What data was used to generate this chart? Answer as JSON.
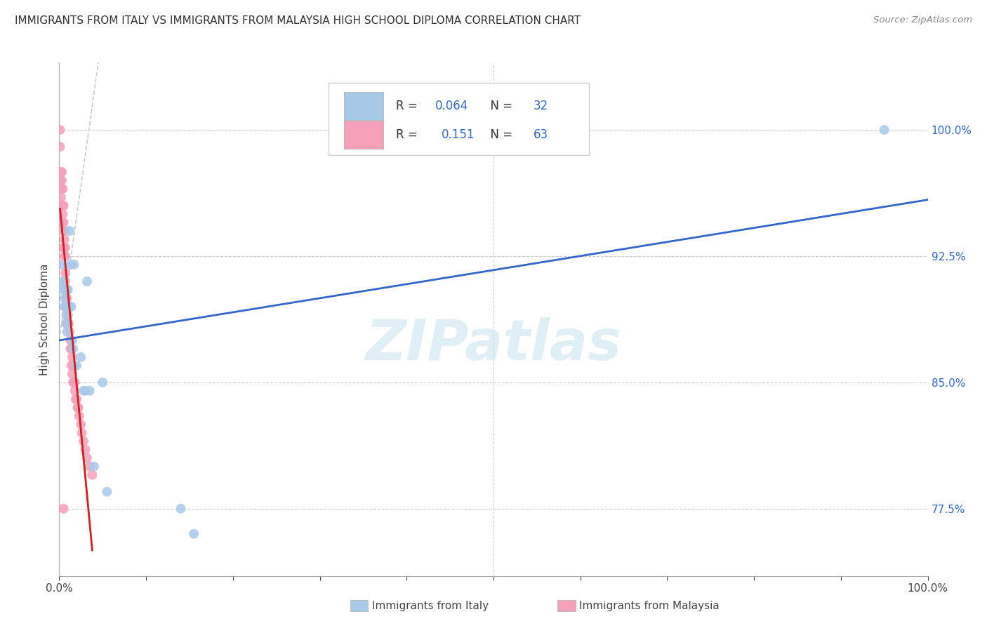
{
  "title": "IMMIGRANTS FROM ITALY VS IMMIGRANTS FROM MALAYSIA HIGH SCHOOL DIPLOMA CORRELATION CHART",
  "source": "Source: ZipAtlas.com",
  "ylabel": "High School Diploma",
  "watermark": "ZIPatlas",
  "legend_italy": "Immigrants from Italy",
  "legend_malaysia": "Immigrants from Malaysia",
  "R_italy": 0.064,
  "N_italy": 32,
  "R_malaysia": 0.151,
  "N_malaysia": 63,
  "xlim": [
    0.0,
    1.0
  ],
  "ylim": [
    0.735,
    1.04
  ],
  "yticks": [
    0.775,
    0.85,
    0.925,
    1.0
  ],
  "ytick_labels": [
    "77.5%",
    "85.0%",
    "92.5%",
    "100.0%"
  ],
  "color_italy": "#a8c8e8",
  "color_malaysia": "#f4a0b8",
  "trendline_italy_color": "#3366cc",
  "trendline_malaysia_color": "#cc2222",
  "refline_color": "#cccccc",
  "background_color": "#ffffff",
  "grid_color": "#cccccc",
  "italy_x": [
    0.004,
    0.004,
    0.005,
    0.006,
    0.006,
    0.007,
    0.007,
    0.008,
    0.008,
    0.009,
    0.009,
    0.01,
    0.01,
    0.011,
    0.012,
    0.013,
    0.014,
    0.015,
    0.016,
    0.017,
    0.02,
    0.025,
    0.028,
    0.03,
    0.032,
    0.035,
    0.04,
    0.05,
    0.055,
    0.14,
    0.155,
    0.95
  ],
  "italy_y": [
    0.92,
    0.91,
    0.905,
    0.9,
    0.895,
    0.905,
    0.895,
    0.89,
    0.885,
    0.905,
    0.88,
    0.905,
    0.895,
    0.895,
    0.94,
    0.92,
    0.895,
    0.875,
    0.87,
    0.92,
    0.86,
    0.865,
    0.845,
    0.845,
    0.91,
    0.845,
    0.8,
    0.85,
    0.785,
    0.775,
    0.76,
    1.0
  ],
  "malaysia_x": [
    0.001,
    0.001,
    0.001,
    0.002,
    0.002,
    0.002,
    0.003,
    0.003,
    0.003,
    0.003,
    0.004,
    0.004,
    0.004,
    0.004,
    0.005,
    0.005,
    0.005,
    0.005,
    0.006,
    0.006,
    0.006,
    0.006,
    0.007,
    0.007,
    0.007,
    0.007,
    0.008,
    0.008,
    0.008,
    0.009,
    0.009,
    0.009,
    0.009,
    0.01,
    0.01,
    0.01,
    0.011,
    0.011,
    0.012,
    0.013,
    0.013,
    0.014,
    0.014,
    0.015,
    0.015,
    0.016,
    0.016,
    0.017,
    0.018,
    0.018,
    0.019,
    0.02,
    0.021,
    0.022,
    0.023,
    0.025,
    0.026,
    0.028,
    0.03,
    0.032,
    0.035,
    0.038,
    0.005
  ],
  "malaysia_y": [
    1.0,
    0.99,
    0.97,
    0.975,
    0.965,
    0.96,
    0.975,
    0.97,
    0.965,
    0.955,
    0.965,
    0.955,
    0.95,
    0.945,
    0.955,
    0.945,
    0.94,
    0.93,
    0.94,
    0.935,
    0.93,
    0.925,
    0.93,
    0.925,
    0.915,
    0.91,
    0.905,
    0.9,
    0.895,
    0.905,
    0.9,
    0.895,
    0.885,
    0.895,
    0.89,
    0.885,
    0.895,
    0.885,
    0.88,
    0.875,
    0.87,
    0.87,
    0.86,
    0.865,
    0.855,
    0.86,
    0.85,
    0.85,
    0.85,
    0.845,
    0.84,
    0.84,
    0.835,
    0.835,
    0.83,
    0.825,
    0.82,
    0.815,
    0.81,
    0.805,
    0.8,
    0.795,
    0.775
  ]
}
